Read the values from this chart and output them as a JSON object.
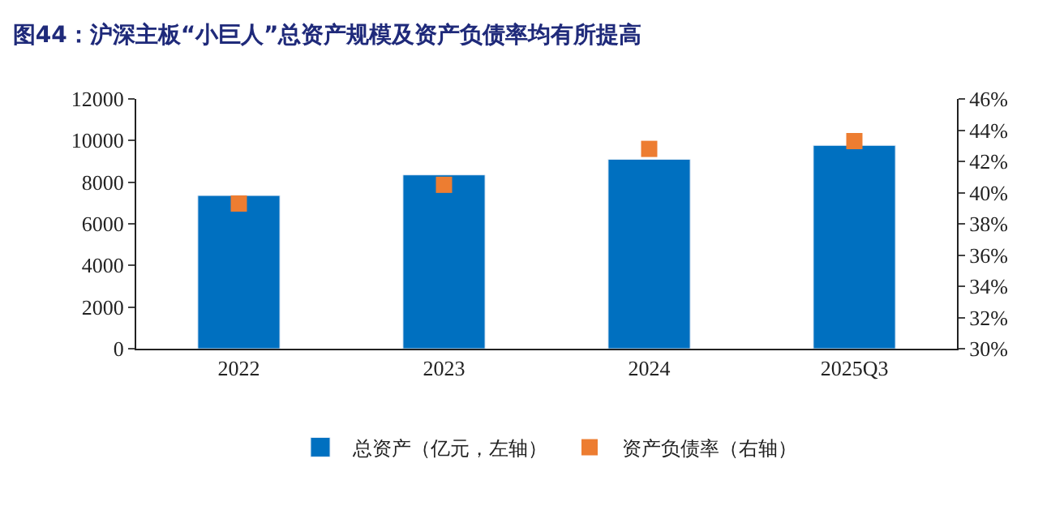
{
  "chart_data": {
    "type": "bar",
    "title": "图44：沪深主板“小巨人”总资产规模及资产负债率均有所提高",
    "categories": [
      "2022",
      "2023",
      "2024",
      "2025Q3"
    ],
    "series": [
      {
        "name": "总资产（亿元，左轴）",
        "color": "#0070c0",
        "values": [
          7360,
          8350,
          9100,
          9770
        ]
      },
      {
        "name": "资产负债率（右轴）",
        "type": "scatter",
        "axis": "y2",
        "marker": "square",
        "color": "#ed7d31",
        "values": [
          39.3,
          40.5,
          42.8,
          43.3
        ]
      }
    ],
    "ylim": [
      0,
      12000
    ],
    "yticks": [
      0,
      2000,
      4000,
      6000,
      8000,
      10000,
      12000
    ],
    "y2lim": [
      30,
      46
    ],
    "y2ticks": [
      {
        "value": 30,
        "label": "30%"
      },
      {
        "value": 32,
        "label": "32%"
      },
      {
        "value": 34,
        "label": "34%"
      },
      {
        "value": 36,
        "label": "36%"
      },
      {
        "value": 38,
        "label": "38%"
      },
      {
        "value": 40,
        "label": "40%"
      },
      {
        "value": 42,
        "label": "42%"
      },
      {
        "value": 44,
        "label": "44%"
      },
      {
        "value": 46,
        "label": "46%"
      }
    ],
    "legend": "bottom"
  }
}
